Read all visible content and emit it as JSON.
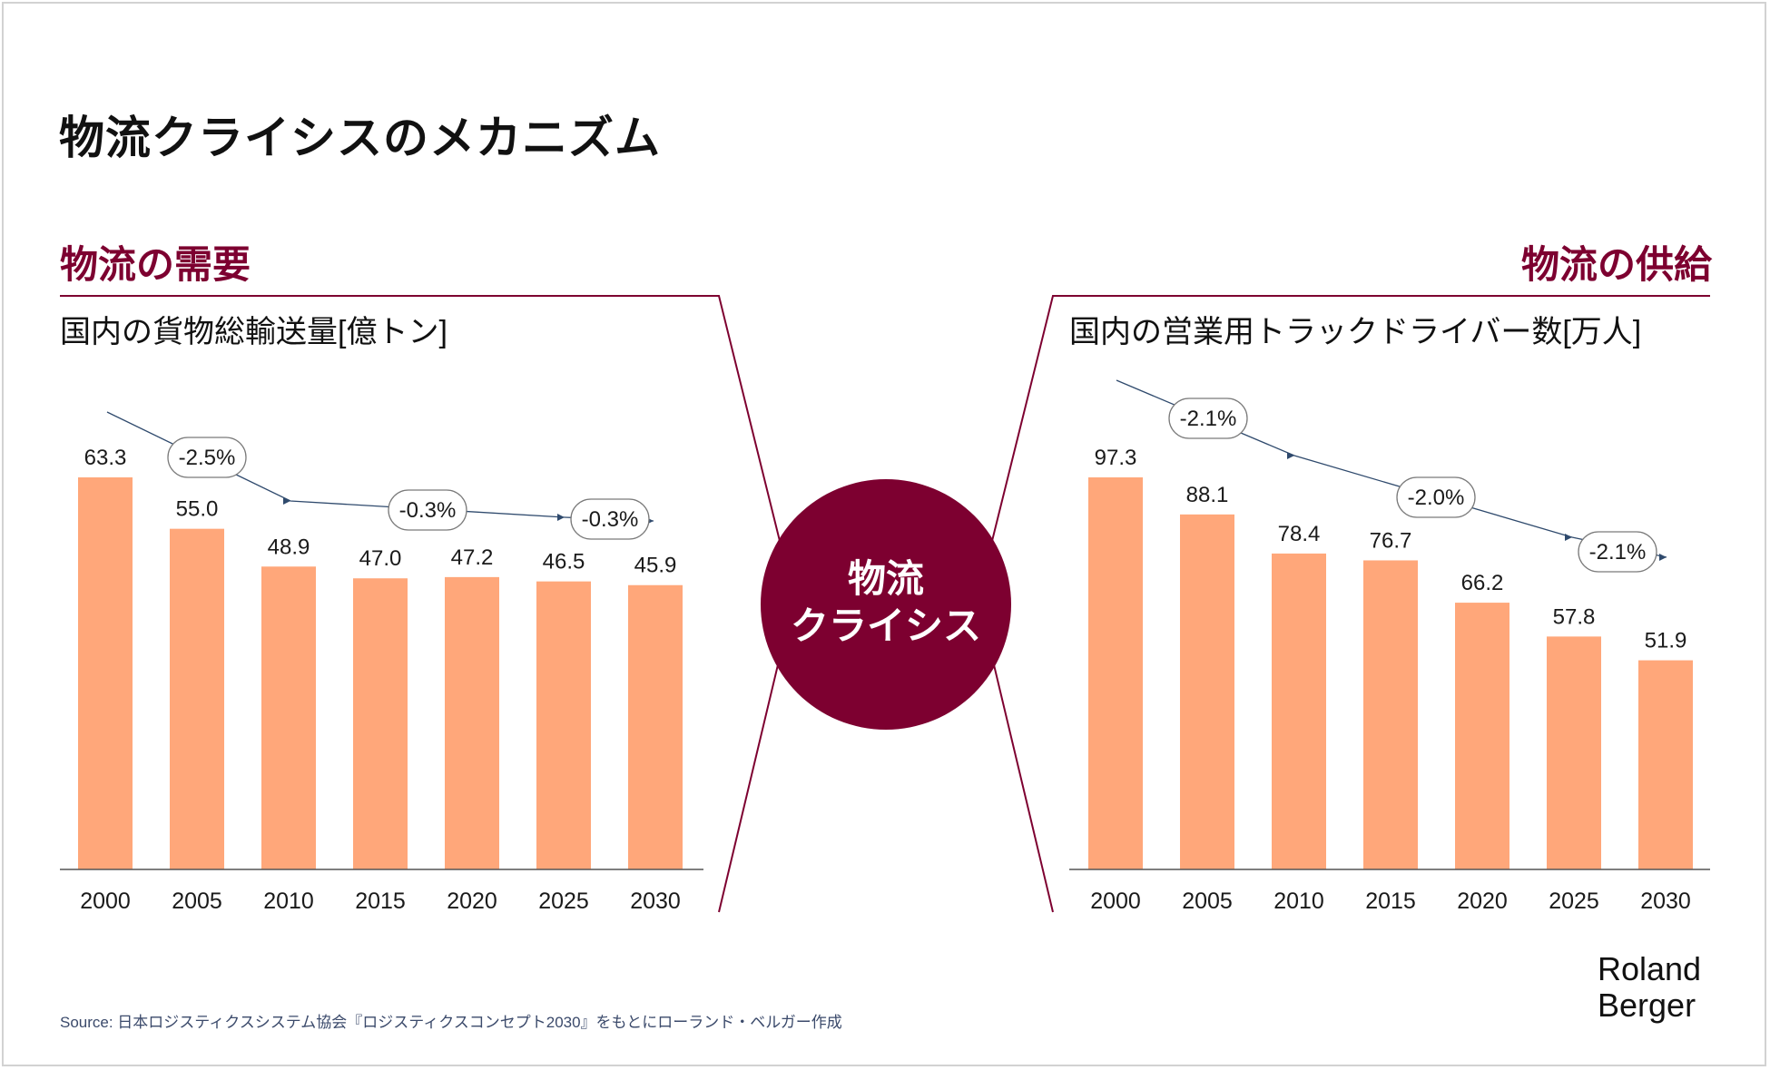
{
  "page_title": "物流クライシスのメカニズム",
  "center": {
    "line1": "物流",
    "line2": "クライシス"
  },
  "colors": {
    "accent": "#7d0030",
    "bar": "#ffa77a",
    "trend": "#2f4a6d"
  },
  "source": "Source: 日本ロジスティクスシステム協会『ロジスティクスコンセプト2030』をもとにローランド・ベルガー作成",
  "logo": {
    "line1": "Roland",
    "line2": "Berger"
  },
  "chart_data": [
    {
      "type": "bar",
      "section_title": "物流の需要",
      "title": "国内の貨物総輸送量[億トン]",
      "categories": [
        "2000",
        "2005",
        "2010",
        "2015",
        "2020",
        "2025",
        "2030"
      ],
      "values": [
        63.3,
        55.0,
        48.9,
        47.0,
        47.2,
        46.5,
        45.9
      ],
      "value_labels": [
        "63.3",
        "55.0",
        "48.9",
        "47.0",
        "47.2",
        "46.5",
        "45.9"
      ],
      "ylim": [
        0,
        63.3
      ],
      "growth_rates": [
        "-2.5%",
        "-0.3%",
        "-0.3%"
      ]
    },
    {
      "type": "bar",
      "section_title": "物流の供給",
      "title": "国内の営業用トラックドライバー数[万人]",
      "categories": [
        "2000",
        "2005",
        "2010",
        "2015",
        "2020",
        "2025",
        "2030"
      ],
      "values": [
        97.3,
        88.1,
        78.4,
        76.7,
        66.2,
        57.8,
        51.9
      ],
      "value_labels": [
        "97.3",
        "88.1",
        "78.4",
        "76.7",
        "66.2",
        "57.8",
        "51.9"
      ],
      "ylim": [
        0,
        97.3
      ],
      "growth_rates": [
        "-2.1%",
        "-2.0%",
        "-2.1%"
      ]
    }
  ]
}
